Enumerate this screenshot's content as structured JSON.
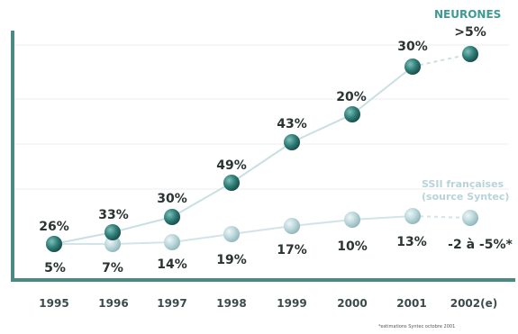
{
  "chart_data": {
    "type": "line",
    "categories": [
      "1995",
      "1996",
      "1997",
      "1998",
      "1999",
      "2000",
      "2001",
      "2002(e)"
    ],
    "series": [
      {
        "name": "NEURONES",
        "labels": [
          "26%",
          "33%",
          "30%",
          "49%",
          "43%",
          "20%",
          "30%",
          ">5%"
        ],
        "color": "#2f7d78"
      },
      {
        "name": "SSII françaises (source Syntec)",
        "labels": [
          "5%",
          "7%",
          "14%",
          "19%",
          "17%",
          "10%",
          "13%",
          "-2 à -5%*"
        ],
        "color": "#b9d6da"
      }
    ],
    "footnote": "*estimations Syntec octobre 2001"
  }
}
